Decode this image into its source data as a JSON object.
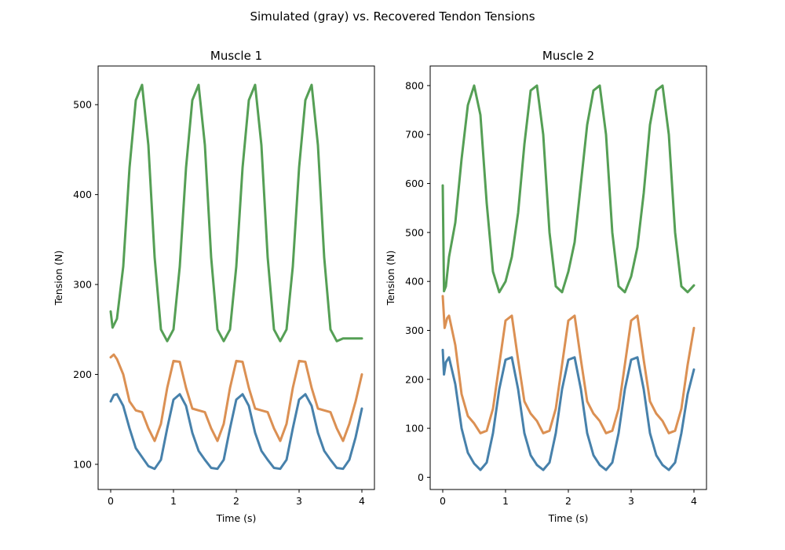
{
  "suptitle": "Simulated (gray) vs. Recovered Tendon Tensions",
  "chart_data": [
    {
      "type": "line",
      "title": "Muscle 1",
      "xlabel": "Time (s)",
      "ylabel": "Tension (N)",
      "xlim": [
        -0.2,
        4.2
      ],
      "ylim": [
        72,
        543
      ],
      "xticks": [
        0,
        1,
        2,
        3,
        4
      ],
      "yticks": [
        100,
        200,
        300,
        400,
        500
      ],
      "grid": false,
      "series": [
        {
          "color": "#4c9a4c",
          "x": [
            0,
            0.03,
            0.1,
            0.2,
            0.3,
            0.4,
            0.5,
            0.6,
            0.7,
            0.8,
            0.9,
            1.0,
            1.1,
            1.2,
            1.3,
            1.4,
            1.5,
            1.6,
            1.7,
            1.8,
            1.9,
            2.0,
            2.1,
            2.2,
            2.3,
            2.4,
            2.5,
            2.6,
            2.7,
            2.8,
            2.9,
            3.0,
            3.1,
            3.2,
            3.3,
            3.4,
            3.5,
            3.6,
            3.7,
            3.8,
            3.9,
            4.0
          ],
          "y": [
            270,
            252,
            262,
            320,
            430,
            505,
            522,
            455,
            330,
            250,
            237,
            250,
            320,
            430,
            505,
            522,
            455,
            330,
            250,
            237,
            250,
            320,
            430,
            505,
            522,
            455,
            330,
            250,
            237,
            250,
            320,
            430,
            505,
            522,
            455,
            330,
            250,
            237,
            240,
            240,
            240,
            240
          ]
        },
        {
          "color": "#d98a4a",
          "x": [
            0,
            0.05,
            0.1,
            0.2,
            0.3,
            0.4,
            0.5,
            0.6,
            0.7,
            0.8,
            0.9,
            1.0,
            1.1,
            1.2,
            1.3,
            1.4,
            1.5,
            1.6,
            1.7,
            1.8,
            1.9,
            2.0,
            2.1,
            2.2,
            2.3,
            2.4,
            2.5,
            2.6,
            2.7,
            2.8,
            2.9,
            3.0,
            3.1,
            3.2,
            3.3,
            3.4,
            3.5,
            3.6,
            3.7,
            3.8,
            3.9,
            4.0
          ],
          "y": [
            219,
            222,
            217,
            200,
            170,
            160,
            158,
            140,
            126,
            145,
            185,
            215,
            214,
            185,
            162,
            160,
            158,
            140,
            126,
            145,
            185,
            215,
            214,
            185,
            162,
            160,
            158,
            140,
            126,
            145,
            185,
            215,
            214,
            185,
            162,
            160,
            158,
            140,
            126,
            145,
            170,
            200
          ]
        },
        {
          "color": "#3d7aa6",
          "x": [
            0,
            0.05,
            0.1,
            0.2,
            0.3,
            0.4,
            0.5,
            0.6,
            0.7,
            0.8,
            0.9,
            1.0,
            1.1,
            1.2,
            1.3,
            1.4,
            1.5,
            1.6,
            1.7,
            1.8,
            1.9,
            2.0,
            2.1,
            2.2,
            2.3,
            2.4,
            2.5,
            2.6,
            2.7,
            2.8,
            2.9,
            3.0,
            3.1,
            3.2,
            3.3,
            3.4,
            3.5,
            3.6,
            3.7,
            3.8,
            3.9,
            4.0
          ],
          "y": [
            170,
            177,
            178,
            165,
            140,
            118,
            108,
            98,
            95,
            105,
            140,
            172,
            178,
            165,
            135,
            115,
            105,
            96,
            95,
            105,
            140,
            172,
            178,
            165,
            135,
            115,
            105,
            96,
            95,
            105,
            140,
            172,
            178,
            165,
            135,
            115,
            105,
            96,
            95,
            105,
            130,
            162
          ]
        }
      ]
    },
    {
      "type": "line",
      "title": "Muscle 2",
      "xlabel": "Time (s)",
      "ylabel": "Tension (N)",
      "xlim": [
        -0.2,
        4.2
      ],
      "ylim": [
        -25,
        840
      ],
      "xticks": [
        0,
        1,
        2,
        3,
        4
      ],
      "yticks": [
        0,
        100,
        200,
        300,
        400,
        500,
        600,
        700,
        800
      ],
      "grid": false,
      "series": [
        {
          "color": "#4c9a4c",
          "x": [
            0,
            0.02,
            0.05,
            0.1,
            0.2,
            0.3,
            0.4,
            0.5,
            0.6,
            0.7,
            0.8,
            0.9,
            1.0,
            1.1,
            1.2,
            1.3,
            1.4,
            1.5,
            1.6,
            1.7,
            1.8,
            1.9,
            2.0,
            2.1,
            2.2,
            2.3,
            2.4,
            2.5,
            2.6,
            2.7,
            2.8,
            2.9,
            3.0,
            3.1,
            3.2,
            3.3,
            3.4,
            3.5,
            3.6,
            3.7,
            3.8,
            3.9,
            4.0
          ],
          "y": [
            596,
            380,
            390,
            450,
            520,
            650,
            760,
            800,
            740,
            560,
            420,
            378,
            400,
            450,
            540,
            680,
            790,
            800,
            700,
            500,
            390,
            378,
            420,
            480,
            600,
            720,
            790,
            800,
            700,
            500,
            390,
            378,
            410,
            470,
            580,
            720,
            790,
            800,
            700,
            500,
            390,
            378,
            392
          ]
        },
        {
          "color": "#d98a4a",
          "x": [
            0,
            0.03,
            0.07,
            0.1,
            0.2,
            0.3,
            0.4,
            0.5,
            0.6,
            0.7,
            0.8,
            0.9,
            1.0,
            1.1,
            1.2,
            1.3,
            1.4,
            1.5,
            1.6,
            1.7,
            1.8,
            1.9,
            2.0,
            2.1,
            2.2,
            2.3,
            2.4,
            2.5,
            2.6,
            2.7,
            2.8,
            2.9,
            3.0,
            3.1,
            3.2,
            3.3,
            3.4,
            3.5,
            3.6,
            3.7,
            3.8,
            3.9,
            4.0
          ],
          "y": [
            370,
            305,
            325,
            330,
            270,
            170,
            125,
            110,
            90,
            95,
            140,
            230,
            320,
            330,
            240,
            155,
            130,
            115,
            90,
            95,
            140,
            230,
            320,
            330,
            240,
            155,
            130,
            115,
            90,
            95,
            140,
            230,
            320,
            330,
            240,
            155,
            130,
            115,
            90,
            95,
            140,
            230,
            305
          ]
        },
        {
          "color": "#3d7aa6",
          "x": [
            0,
            0.02,
            0.05,
            0.1,
            0.2,
            0.3,
            0.4,
            0.5,
            0.6,
            0.7,
            0.8,
            0.9,
            1.0,
            1.1,
            1.2,
            1.3,
            1.4,
            1.5,
            1.6,
            1.7,
            1.8,
            1.9,
            2.0,
            2.1,
            2.2,
            2.3,
            2.4,
            2.5,
            2.6,
            2.7,
            2.8,
            2.9,
            3.0,
            3.1,
            3.2,
            3.3,
            3.4,
            3.5,
            3.6,
            3.7,
            3.8,
            3.9,
            4.0
          ],
          "y": [
            260,
            210,
            235,
            245,
            190,
            100,
            50,
            28,
            15,
            30,
            90,
            180,
            240,
            245,
            180,
            90,
            45,
            25,
            15,
            30,
            90,
            180,
            240,
            245,
            180,
            90,
            45,
            25,
            15,
            30,
            90,
            180,
            240,
            245,
            180,
            90,
            45,
            25,
            15,
            30,
            90,
            170,
            220
          ]
        }
      ]
    }
  ]
}
